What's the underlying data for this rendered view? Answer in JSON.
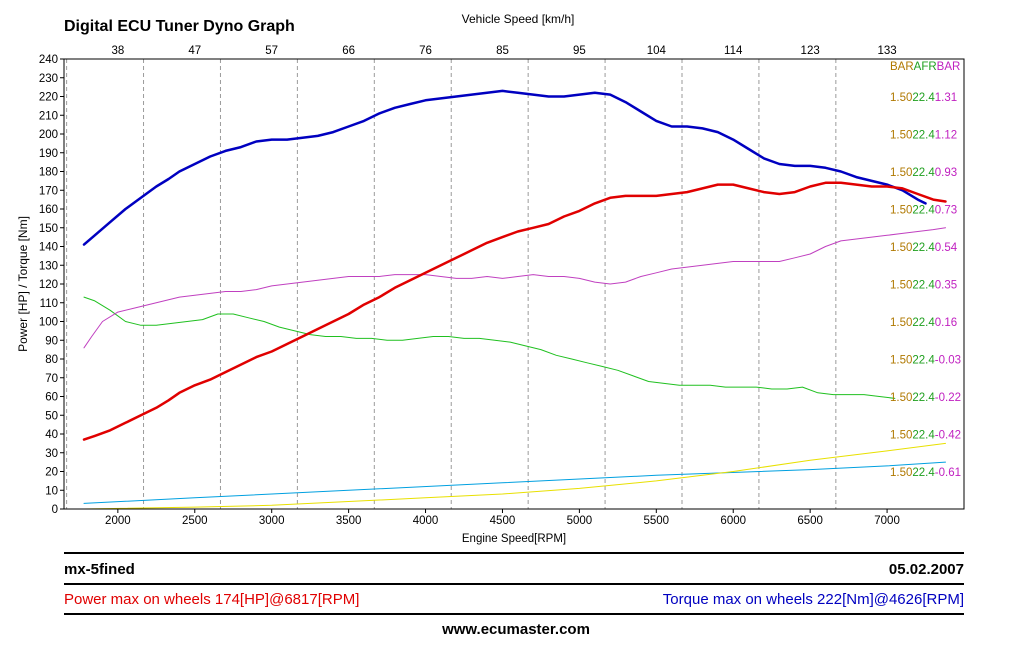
{
  "header": {
    "title": "Digital ECU Tuner Dyno Graph",
    "speed_axis_title": "Vehicle Speed [km/h]"
  },
  "right_labels": {
    "header": [
      "BAR",
      "AFR",
      "BAR"
    ],
    "rows": [
      [
        "1.50",
        "22.4",
        "1.31"
      ],
      [
        "1.50",
        "22.4",
        "1.12"
      ],
      [
        "1.50",
        "22.4",
        "0.93"
      ],
      [
        "1.50",
        "22.4",
        "0.73"
      ],
      [
        "1.50",
        "22.4",
        "0.54"
      ],
      [
        "1.50",
        "22.4",
        "0.35"
      ],
      [
        "1.50",
        "22.4",
        "0.16"
      ],
      [
        "1.50",
        "22.4",
        "-0.03"
      ],
      [
        "1.50",
        "22.4",
        "-0.22"
      ],
      [
        "1.50",
        "22.4",
        "-0.42"
      ],
      [
        "1.50",
        "22.4",
        "-0.61"
      ]
    ],
    "colors": [
      "#b07800",
      "#20a020",
      "#c020c0"
    ]
  },
  "chart_data": {
    "type": "line",
    "xlabel": "Engine Speed[RPM]",
    "ylabel": "Power [HP] / Torque [Nm]",
    "xlim": [
      1650,
      7500
    ],
    "ylim": [
      0,
      240
    ],
    "x_ticks": [
      2000,
      2500,
      3000,
      3500,
      4000,
      4500,
      5000,
      5500,
      6000,
      6500,
      7000
    ],
    "y_ticks": [
      0,
      10,
      20,
      30,
      40,
      50,
      60,
      70,
      80,
      90,
      100,
      110,
      120,
      130,
      140,
      150,
      160,
      170,
      180,
      190,
      200,
      210,
      220,
      230,
      240
    ],
    "top_axis": {
      "label": "Vehicle Speed [km/h]",
      "ticks": [
        {
          "rpm": 1667,
          "label": "38"
        },
        {
          "rpm": 2167,
          "label": "47"
        },
        {
          "rpm": 2667,
          "label": "57"
        },
        {
          "rpm": 3167,
          "label": "66"
        },
        {
          "rpm": 3667,
          "label": "76"
        },
        {
          "rpm": 4167,
          "label": "85"
        },
        {
          "rpm": 4667,
          "label": "95"
        },
        {
          "rpm": 5167,
          "label": "104"
        },
        {
          "rpm": 5667,
          "label": "114"
        },
        {
          "rpm": 6167,
          "label": "123"
        },
        {
          "rpm": 6667,
          "label": "133"
        }
      ],
      "label_offset_rpm": 333
    },
    "grid": "dashed vertical",
    "series": [
      {
        "name": "Torque [Nm]",
        "color": "#0000c0",
        "width": 2.5,
        "x": [
          1780,
          1850,
          1950,
          2050,
          2150,
          2250,
          2330,
          2400,
          2500,
          2600,
          2700,
          2800,
          2900,
          3000,
          3100,
          3200,
          3300,
          3400,
          3500,
          3600,
          3700,
          3800,
          3900,
          4000,
          4100,
          4200,
          4300,
          4400,
          4500,
          4600,
          4700,
          4800,
          4900,
          5000,
          5100,
          5200,
          5300,
          5400,
          5500,
          5600,
          5700,
          5800,
          5900,
          6000,
          6100,
          6200,
          6300,
          6400,
          6500,
          6600,
          6700,
          6800,
          6900,
          7000,
          7100,
          7200,
          7250
        ],
        "y": [
          141,
          146,
          153,
          160,
          166,
          172,
          176,
          180,
          184,
          188,
          191,
          193,
          196,
          197,
          197,
          198,
          199,
          201,
          204,
          207,
          211,
          214,
          216,
          218,
          219,
          220,
          221,
          222,
          223,
          222,
          221,
          220,
          220,
          221,
          222,
          221,
          217,
          212,
          207,
          204,
          204,
          203,
          201,
          197,
          192,
          187,
          184,
          183,
          183,
          182,
          180,
          177,
          175,
          173,
          170,
          165,
          163
        ]
      },
      {
        "name": "Power [HP]",
        "color": "#e00000",
        "width": 2.5,
        "x": [
          1780,
          1850,
          1950,
          2050,
          2150,
          2250,
          2330,
          2400,
          2500,
          2600,
          2700,
          2800,
          2900,
          3000,
          3100,
          3200,
          3300,
          3400,
          3500,
          3600,
          3700,
          3800,
          3900,
          4000,
          4100,
          4200,
          4300,
          4400,
          4500,
          4600,
          4700,
          4800,
          4900,
          5000,
          5100,
          5200,
          5300,
          5400,
          5500,
          5600,
          5700,
          5800,
          5900,
          6000,
          6100,
          6200,
          6300,
          6400,
          6500,
          6600,
          6700,
          6800,
          6900,
          7000,
          7100,
          7200,
          7300,
          7380
        ],
        "y": [
          37,
          39,
          42,
          46,
          50,
          54,
          58,
          62,
          66,
          69,
          73,
          77,
          81,
          84,
          88,
          92,
          96,
          100,
          104,
          109,
          113,
          118,
          122,
          126,
          130,
          134,
          138,
          142,
          145,
          148,
          150,
          152,
          156,
          159,
          163,
          166,
          167,
          167,
          167,
          168,
          169,
          171,
          173,
          173,
          171,
          169,
          168,
          169,
          172,
          174,
          174,
          173,
          172,
          172,
          171,
          168,
          165,
          164
        ]
      },
      {
        "name": "Green",
        "color": "#20c020",
        "width": 1,
        "x": [
          1780,
          1850,
          1950,
          2050,
          2150,
          2250,
          2350,
          2450,
          2550,
          2650,
          2750,
          2850,
          2950,
          3050,
          3150,
          3250,
          3350,
          3450,
          3550,
          3650,
          3750,
          3850,
          3950,
          4050,
          4150,
          4250,
          4350,
          4450,
          4550,
          4650,
          4750,
          4850,
          4950,
          5050,
          5150,
          5250,
          5350,
          5450,
          5550,
          5650,
          5750,
          5850,
          5950,
          6050,
          6150,
          6250,
          6350,
          6450,
          6550,
          6650,
          6750,
          6850,
          6950,
          7050
        ],
        "y": [
          113,
          111,
          106,
          100,
          98,
          98,
          99,
          100,
          101,
          104,
          104,
          102,
          100,
          97,
          95,
          93,
          92,
          92,
          91,
          91,
          90,
          90,
          91,
          92,
          92,
          91,
          91,
          90,
          89,
          87,
          85,
          82,
          80,
          78,
          76,
          74,
          71,
          68,
          67,
          66,
          66,
          66,
          65,
          65,
          65,
          64,
          64,
          65,
          62,
          61,
          61,
          61,
          60,
          59
        ]
      },
      {
        "name": "Magenta",
        "color": "#c040c0",
        "width": 1,
        "x": [
          1780,
          1830,
          1900,
          2000,
          2100,
          2200,
          2300,
          2400,
          2500,
          2600,
          2700,
          2800,
          2900,
          3000,
          3100,
          3200,
          3300,
          3400,
          3500,
          3600,
          3700,
          3800,
          3900,
          4000,
          4100,
          4200,
          4300,
          4400,
          4500,
          4600,
          4700,
          4800,
          4900,
          5000,
          5100,
          5200,
          5300,
          5400,
          5500,
          5600,
          5700,
          5800,
          5900,
          6000,
          6100,
          6200,
          6300,
          6400,
          6500,
          6600,
          6700,
          6800,
          6900,
          7000,
          7100,
          7200,
          7300,
          7380
        ],
        "y": [
          86,
          92,
          100,
          105,
          107,
          109,
          111,
          113,
          114,
          115,
          116,
          116,
          117,
          119,
          120,
          121,
          122,
          123,
          124,
          124,
          124,
          125,
          125,
          125,
          124,
          123,
          123,
          124,
          123,
          124,
          125,
          124,
          124,
          123,
          121,
          120,
          121,
          124,
          126,
          128,
          129,
          130,
          131,
          132,
          132,
          132,
          132,
          134,
          136,
          140,
          143,
          144,
          145,
          146,
          147,
          148,
          149,
          150
        ]
      },
      {
        "name": "Cyan",
        "color": "#00a0e0",
        "width": 1,
        "x": [
          1780,
          2500,
          3500,
          4500,
          5500,
          6500,
          7000,
          7380
        ],
        "y": [
          3,
          6,
          10,
          14,
          18,
          21,
          23,
          25
        ]
      },
      {
        "name": "Yellow",
        "color": "#e8e000",
        "width": 1,
        "x": [
          1780,
          2500,
          3000,
          3500,
          4000,
          4500,
          5000,
          5500,
          6000,
          6500,
          7000,
          7380
        ],
        "y": [
          0,
          1,
          2,
          4,
          6,
          8,
          11,
          15,
          20,
          26,
          31,
          35
        ]
      }
    ]
  },
  "footer": {
    "vehicle": "mx-5fined",
    "date": "05.02.2007",
    "power_max": "Power max on wheels 174[HP]@6817[RPM]",
    "torque_max": "Torque max on wheels 222[Nm]@4626[RPM]",
    "website": "www.ecumaster.com"
  }
}
